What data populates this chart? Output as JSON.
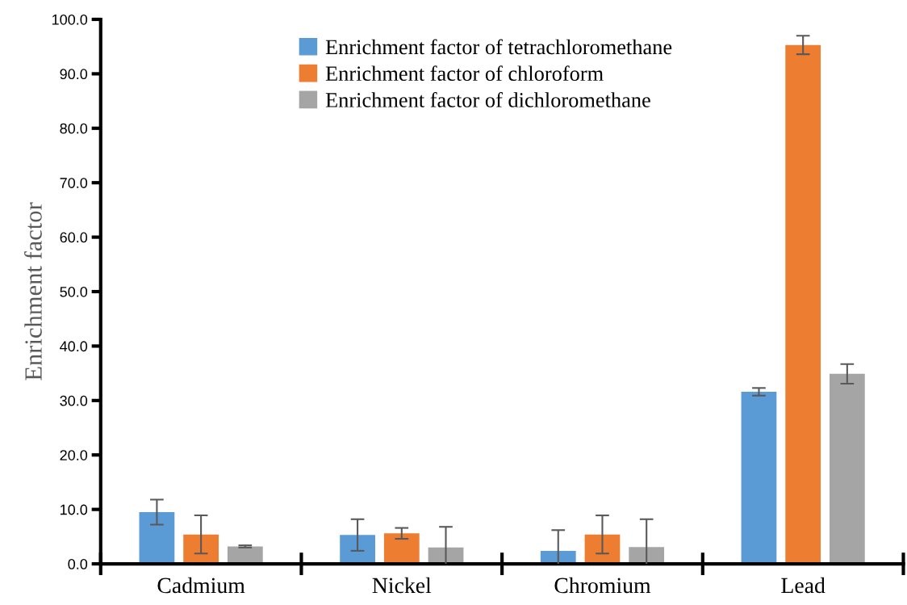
{
  "chart_data": {
    "type": "bar",
    "ylabel": "Enrichment factor",
    "categories": [
      "Cadmium",
      "Nickel",
      "Chromium",
      "Lead"
    ],
    "series": [
      {
        "name": "Enrichment factor of tetrachloromethane",
        "color": "#5b9bd5",
        "values": [
          9.5,
          5.3,
          2.4,
          31.6
        ],
        "errors": [
          2.3,
          2.9,
          3.8,
          0.7
        ]
      },
      {
        "name": "Enrichment factor of chloroform",
        "color": "#ed7d31",
        "values": [
          5.4,
          5.6,
          5.4,
          95.3
        ],
        "errors": [
          3.5,
          1.0,
          3.5,
          1.7
        ]
      },
      {
        "name": "Enrichment factor of dichloromethane",
        "color": "#a5a5a5",
        "values": [
          3.2,
          3.0,
          3.1,
          34.9
        ],
        "errors": [
          0.2,
          3.8,
          5.1,
          1.8
        ]
      }
    ],
    "ylim": [
      0,
      100
    ],
    "yticks": [
      {
        "value": 0,
        "label": "0.0"
      },
      {
        "value": 10,
        "label": "10.0"
      },
      {
        "value": 20,
        "label": "20.0"
      },
      {
        "value": 30,
        "label": "30.0"
      },
      {
        "value": 40,
        "label": "40.0"
      },
      {
        "value": 50,
        "label": "50.0"
      },
      {
        "value": 60,
        "label": "60.0"
      },
      {
        "value": 70,
        "label": "70.0"
      },
      {
        "value": 80,
        "label": "80.0"
      },
      {
        "value": 90,
        "label": "90.0"
      },
      {
        "value": 100,
        "label": "100.0"
      }
    ],
    "grid": false,
    "legend": "top"
  }
}
